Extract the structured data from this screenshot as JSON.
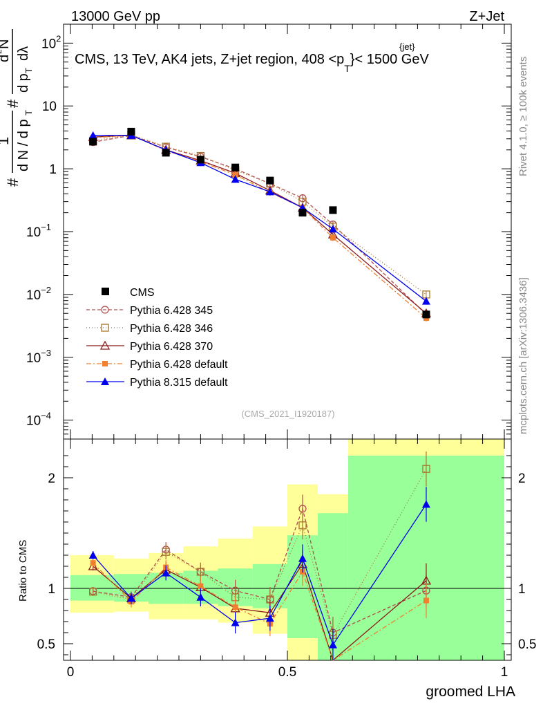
{
  "header": {
    "left": "13000 GeV pp",
    "right": "Z+Jet",
    "title": "CMS, 13 TeV, AK4 jets, Z+jet region, 408 <p",
    "title_sup": "{jet}",
    "title_sub": "T",
    "title_end": "}< 1500 GeV",
    "watermark": "(CMS_2021_I1920187)",
    "side_top": "Rivet 4.1.0, ≥ 100k events",
    "side_bottom": "mcplots.cern.ch [arXiv:1306.3436]"
  },
  "ylabel": {
    "hash1": "#",
    "one": "1",
    "hash2": "#",
    "dN": "d N / d p",
    "T": "T",
    "d2N": "d",
    "two": "2",
    "N": "N",
    "dpT": "d p",
    "dlam": "dλ"
  },
  "chart_data": {
    "type": "line",
    "xlabel": "groomed LHA",
    "ratio_ylabel": "Ratio to CMS",
    "xlim": [
      0,
      1
    ],
    "ylim_main": [
      5e-05,
      200
    ],
    "ylim_ratio": [
      0.35,
      2.35
    ],
    "x_ticks": [
      {
        "value": 0,
        "label": "0"
      },
      {
        "value": 0.5,
        "label": "0.5"
      },
      {
        "value": 1,
        "label": "1"
      }
    ],
    "y_ticks_main": [
      {
        "value": 0.0001,
        "base": "10",
        "exp": "−4"
      },
      {
        "value": 0.001,
        "base": "10",
        "exp": "−3"
      },
      {
        "value": 0.01,
        "base": "10",
        "exp": "−2"
      },
      {
        "value": 0.1,
        "base": "10",
        "exp": "−1"
      },
      {
        "value": 1,
        "base": "1",
        "exp": ""
      },
      {
        "value": 10,
        "base": "10",
        "exp": ""
      },
      {
        "value": 100,
        "base": "10",
        "exp": "2"
      }
    ],
    "y_ticks_ratio": [
      {
        "value": 0.5,
        "label": "0.5"
      },
      {
        "value": 1,
        "label": "1"
      },
      {
        "value": 2,
        "label": "2"
      }
    ],
    "bins": [
      [
        0,
        0.1
      ],
      [
        0.1,
        0.18
      ],
      [
        0.18,
        0.26
      ],
      [
        0.26,
        0.34
      ],
      [
        0.34,
        0.42
      ],
      [
        0.42,
        0.5
      ],
      [
        0.5,
        0.57
      ],
      [
        0.57,
        0.64
      ],
      [
        0.64,
        1.0
      ]
    ],
    "x_centers": [
      0.052,
      0.14,
      0.22,
      0.3,
      0.38,
      0.46,
      0.535,
      0.605,
      0.82
    ],
    "data": {
      "name": "CMS",
      "values": [
        2.7,
        3.9,
        1.8,
        1.4,
        1.05,
        0.65,
        0.2,
        0.22,
        0.0048
      ]
    },
    "band_inner": [
      [
        0.89,
        1.12
      ],
      [
        0.88,
        1.13
      ],
      [
        0.86,
        1.14
      ],
      [
        0.86,
        1.16
      ],
      [
        0.84,
        1.18
      ],
      [
        0.82,
        1.22
      ],
      [
        0.55,
        1.48
      ],
      [
        0.35,
        1.68
      ],
      [
        0.35,
        2.2
      ]
    ],
    "band_outer": [
      [
        0.78,
        1.3
      ],
      [
        0.79,
        1.27
      ],
      [
        0.72,
        1.32
      ],
      [
        0.72,
        1.38
      ],
      [
        0.69,
        1.45
      ],
      [
        0.59,
        1.56
      ],
      [
        0.35,
        1.94
      ],
      [
        0.35,
        1.85
      ],
      [
        0.35,
        2.35
      ]
    ],
    "series": [
      {
        "name": "Pythia 6.428 345",
        "color": "#b24d4d",
        "dash": "5,3",
        "marker": "circle-open",
        "values": [
          2.65,
          3.4,
          2.2,
          1.55,
          1.0,
          0.58,
          0.34,
          0.13,
          0.0048
        ],
        "ratio": [
          0.975,
          0.92,
          1.35,
          1.15,
          0.98,
          0.9,
          1.72,
          0.6,
          0.98
        ]
      },
      {
        "name": "Pythia 6.428 346",
        "color": "#a8752e",
        "dash": "1,3",
        "marker": "square-open",
        "values": [
          2.8,
          3.5,
          2.25,
          1.6,
          0.95,
          0.58,
          0.3,
          0.12,
          0.01
        ],
        "ratio": [
          0.97,
          0.9,
          1.33,
          1.15,
          0.92,
          0.9,
          1.57,
          0.58,
          2.08
        ]
      },
      {
        "name": "Pythia 6.428 370",
        "color": "#8b1a1a",
        "dash": "",
        "marker": "triangle-open",
        "values": [
          3.2,
          3.4,
          2.0,
          1.35,
          0.85,
          0.45,
          0.24,
          0.09,
          0.005
        ],
        "ratio": [
          1.2,
          0.91,
          1.17,
          1.01,
          0.82,
          0.78,
          1.22,
          0.32,
          1.07
        ]
      },
      {
        "name": "Pythia 6.428 default",
        "color": "#f08030",
        "dash": "7,3,2,3",
        "marker": "square-filled",
        "values": [
          3.1,
          3.45,
          1.95,
          1.3,
          0.8,
          0.42,
          0.24,
          0.08,
          0.0042
        ],
        "ratio": [
          1.23,
          0.88,
          1.19,
          1.02,
          0.83,
          0.68,
          1.15,
          0.3,
          0.89
        ]
      },
      {
        "name": "Pythia 8.315 default",
        "color": "#0000ee",
        "dash": "",
        "marker": "triangle-filled",
        "values": [
          3.4,
          3.4,
          2.0,
          1.25,
          0.68,
          0.43,
          0.24,
          0.11,
          0.0078
        ],
        "ratio": [
          1.3,
          0.91,
          1.14,
          0.92,
          0.69,
          0.73,
          1.27,
          0.49,
          1.76
        ]
      }
    ]
  }
}
